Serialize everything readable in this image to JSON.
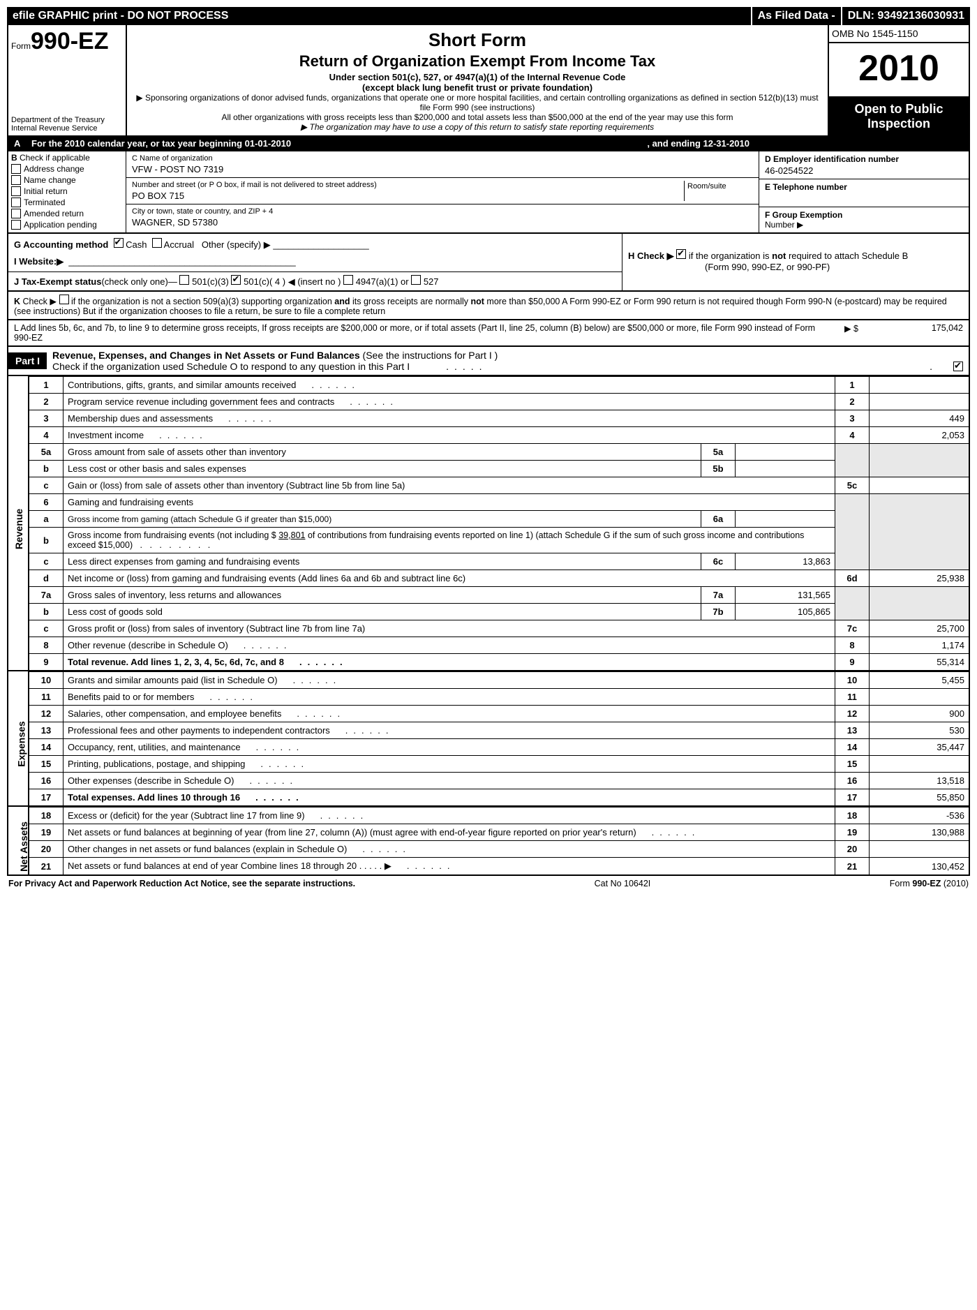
{
  "topbar": {
    "left": "efile GRAPHIC print - DO NOT PROCESS",
    "mid": "As Filed Data -",
    "right": "DLN: 93492136030931"
  },
  "header": {
    "form_prefix": "Form",
    "form_number": "990-EZ",
    "dept": "Department of the Treasury",
    "irs": "Internal Revenue Service",
    "title1": "Short Form",
    "title2": "Return of Organization Exempt From Income Tax",
    "sub": "Under section 501(c), 527, or 4947(a)(1) of the Internal Revenue Code",
    "sub2": "(except black lung benefit trust or private foundation)",
    "fine1": "▶ Sponsoring organizations of donor advised funds, organizations that operate one or more hospital facilities, and certain controlling organizations as defined in section 512(b)(13) must file Form 990 (see instructions)",
    "fine2": "All other organizations with gross receipts less than $200,000 and total assets less than $500,000 at the end of the year may use this form",
    "fine3": "▶ The organization may have to use a copy of this return to satisfy state reporting requirements",
    "omb": "OMB No 1545-1150",
    "year": "2010",
    "open1": "Open to Public",
    "open2": "Inspection"
  },
  "sectionA": {
    "a_text": "For the 2010 calendar year, or tax year beginning 01-01-2010",
    "a_end": ", and ending 12-31-2010",
    "b_label": "Check if applicable",
    "b_items": [
      "Address change",
      "Name change",
      "Initial return",
      "Terminated",
      "Amended return",
      "Application pending"
    ],
    "c_name_label": "C Name of organization",
    "c_name": "VFW - POST NO 7319",
    "c_addr_label": "Number and street (or P O box, if mail is not delivered to street address)",
    "room_label": "Room/suite",
    "c_addr": "PO BOX 715",
    "c_city_label": "City or town, state or country, and ZIP + 4",
    "c_city": "WAGNER, SD  57380",
    "d_label": "D Employer identification number",
    "d_val": "46-0254522",
    "e_label": "E Telephone number",
    "f_label": "F Group Exemption",
    "f_sub": "Number ▶"
  },
  "rowG": {
    "g_label": "G Accounting method",
    "g_cash": "Cash",
    "g_accrual": "Accrual",
    "g_other": "Other (specify) ▶",
    "i_label": "I Website:▶",
    "j_label": "J Tax-Exempt status",
    "j_hint": "(check only one)—",
    "j_1": "501(c)(3)",
    "j_2": "501(c)( 4 )",
    "j_insert": "◀ (insert no )",
    "j_3": "4947(a)(1) or",
    "j_4": "527",
    "h_label": "H  Check ▶",
    "h_text": "if the organization is not required to attach Schedule B",
    "h_sub": "(Form 990, 990-EZ, or 990-PF)"
  },
  "rowK": "K Check ▶   if the organization is not a section 509(a)(3) supporting organization and its gross receipts are normally not more than $50,000  A Form 990-EZ or Form 990 return is not required though Form 990-N (e-postcard) may be required (see instructions)  But if the organization chooses to file a return, be sure to file a complete return",
  "rowL": {
    "text": "L Add lines 5b, 6c, and 7b, to line 9 to determine gross receipts, If gross receipts are $200,000 or more, or if total assets (Part II, line 25, column (B) below) are $500,000 or more,   file Form 990 instead of Form 990-EZ",
    "arrow": "▶ $",
    "val": "175,042"
  },
  "part1": {
    "tag_b": "B",
    "tag_a": "A",
    "tag": "Part I",
    "tag_prefix": "Part I",
    "title": "Revenue, Expenses, and Changes in Net Assets or Fund Balances (See the instructions for Part I )",
    "check_line": "Check if the organization used Schedule O to respond to any question in this Part I"
  },
  "sides": {
    "rev": "Revenue",
    "exp": "Expenses",
    "net": "Net Assets"
  },
  "lines": [
    {
      "n": "1",
      "text": "Contributions, gifts, grants, and similar amounts received",
      "rn": "1",
      "val": ""
    },
    {
      "n": "2",
      "text": "Program service revenue including government fees and contracts",
      "rn": "2",
      "val": ""
    },
    {
      "n": "3",
      "text": "Membership dues and assessments",
      "rn": "3",
      "val": "449"
    },
    {
      "n": "4",
      "text": "Investment income",
      "rn": "4",
      "val": "2,053"
    }
  ],
  "line5": {
    "a_n": "5a",
    "a_text": "Gross amount from sale of assets other than inventory",
    "a_in": "5a",
    "a_iv": "",
    "b_n": "b",
    "b_text": "Less  cost or other basis and sales expenses",
    "b_in": "5b",
    "b_iv": "",
    "c_n": "c",
    "c_text": "Gain or (loss) from sale of assets other than inventory (Subtract line 5b from line 5a)",
    "c_rn": "5c",
    "c_val": ""
  },
  "line6": {
    "n": "6",
    "text": "Gaming and fundraising events",
    "a_n": "a",
    "a_text": "Gross income from gaming (attach Schedule G if greater than $15,000)",
    "a_in": "6a",
    "a_iv": "",
    "b_n": "b",
    "b_text": "Gross income from fundraising events (not including $ 39,801 of contributions from fundraising events reported on line 1) (attach Schedule G if the sum of such gross income and contributions exceed $15,000)",
    "c_n": "c",
    "c_text": "Less  direct expenses from gaming and fundraising events",
    "c_in": "6c",
    "c_iv": "13,863",
    "d_n": "d",
    "d_text": "Net income or (loss) from gaming and fundraising events (Add lines 6a and 6b and subtract line 6c)",
    "d_rn": "6d",
    "d_val": "25,938"
  },
  "line7": {
    "a_n": "7a",
    "a_text": "Gross sales of inventory, less returns and allowances",
    "a_in": "7a",
    "a_iv": "131,565",
    "b_n": "b",
    "b_text": "Less  cost of goods sold",
    "b_in": "7b",
    "b_iv": "105,865",
    "c_n": "c",
    "c_text": "Gross profit or (loss) from sales of inventory (Subtract line 7b from line 7a)",
    "c_rn": "7c",
    "c_val": "25,700"
  },
  "lines8_9": [
    {
      "n": "8",
      "text": "Other revenue (describe in Schedule O)",
      "rn": "8",
      "val": "1,174"
    },
    {
      "n": "9",
      "text": "Total revenue. Add lines 1, 2, 3, 4, 5c, 6d, 7c, and 8",
      "rn": "9",
      "val": "55,314",
      "bold": true
    }
  ],
  "expenses": [
    {
      "n": "10",
      "text": "Grants and similar amounts paid (list in Schedule O)",
      "rn": "10",
      "val": "5,455"
    },
    {
      "n": "11",
      "text": "Benefits paid to or for members",
      "rn": "11",
      "val": ""
    },
    {
      "n": "12",
      "text": "Salaries, other compensation, and employee benefits",
      "rn": "12",
      "val": "900"
    },
    {
      "n": "13",
      "text": "Professional fees and other payments to independent contractors",
      "rn": "13",
      "val": "530"
    },
    {
      "n": "14",
      "text": "Occupancy, rent, utilities, and maintenance",
      "rn": "14",
      "val": "35,447"
    },
    {
      "n": "15",
      "text": "Printing, publications, postage, and shipping",
      "rn": "15",
      "val": ""
    },
    {
      "n": "16",
      "text": "Other expenses (describe in Schedule O)",
      "rn": "16",
      "val": "13,518"
    },
    {
      "n": "17",
      "text": "Total expenses. Add lines 10 through 16",
      "rn": "17",
      "val": "55,850",
      "bold": true
    }
  ],
  "netassets": [
    {
      "n": "18",
      "text": "Excess or (deficit) for the year (Subtract line 17 from line 9)",
      "rn": "18",
      "val": "-536"
    },
    {
      "n": "19",
      "text": "Net assets or fund balances at beginning of year (from line 27, column (A)) (must agree with end-of-year figure reported on prior year's return)",
      "rn": "19",
      "val": "130,988"
    },
    {
      "n": "20",
      "text": "Other changes in net assets or fund balances (explain in Schedule O)",
      "rn": "20",
      "val": ""
    },
    {
      "n": "21",
      "text": "Net assets or fund balances at end of year  Combine lines 18 through 20    .   .   .   .   . ▶",
      "rn": "21",
      "val": "130,452"
    }
  ],
  "footer": {
    "left": "For Privacy Act and Paperwork Reduction Act Notice, see the separate instructions.",
    "mid": "Cat No 10642I",
    "right": "Form 990-EZ (2010)"
  }
}
